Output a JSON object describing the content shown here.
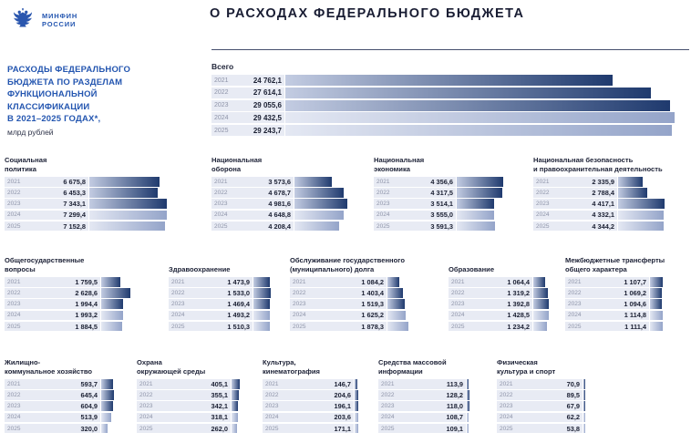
{
  "header": {
    "logo_line1": "МИНФИН",
    "logo_line2": "РОССИИ",
    "title": "О РАСХОДАХ ФЕДЕРАЛЬНОГО БЮДЖЕТА"
  },
  "intro": {
    "heading": "РАСХОДЫ ФЕДЕРАЛЬНОГО\nБЮДЖЕТА ПО РАЗДЕЛАМ\nФУНКЦИОНАЛЬНОЙ\nКЛАССИФИКАЦИИ\nВ 2021–2025 ГОДАХ*,",
    "unit": "млрд рублей"
  },
  "colors": {
    "accent_blue": "#2456b0",
    "title_color": "#191d33",
    "row_box_bg": "#e8ebf4",
    "bar_dark_start": "#c3cce2",
    "bar_dark_end": "#1f3a6e",
    "bar_planned_start": "#e4e8f3",
    "bar_planned_end": "#94a4c9"
  },
  "planned_years": [
    "2024",
    "2025"
  ],
  "chart_data": [
    {
      "id": "total",
      "type": "bar",
      "title": "Всего",
      "categories": [
        "2021",
        "2022",
        "2023",
        "2024",
        "2025"
      ],
      "values": [
        24762.1,
        27614.1,
        29055.6,
        29432.5,
        29243.7
      ],
      "values_display": [
        "24 762,1",
        "27 614,1",
        "29 055,6",
        "29 432,5",
        "29 243,7"
      ]
    },
    {
      "id": "social",
      "type": "bar",
      "title": "Социальная\nполитика",
      "categories": [
        "2021",
        "2022",
        "2023",
        "2024",
        "2025"
      ],
      "values": [
        6675.8,
        6453.3,
        7343.1,
        7299.4,
        7152.8
      ],
      "values_display": [
        "6 675,8",
        "6 453,3",
        "7 343,1",
        "7 299,4",
        "7 152,8"
      ]
    },
    {
      "id": "defense",
      "type": "bar",
      "title": "Национальная\nоборона",
      "categories": [
        "2021",
        "2022",
        "2023",
        "2024",
        "2025"
      ],
      "values": [
        3573.6,
        4678.7,
        4981.6,
        4648.8,
        4208.4
      ],
      "values_display": [
        "3 573,6",
        "4 678,7",
        "4 981,6",
        "4 648,8",
        "4 208,4"
      ]
    },
    {
      "id": "economy",
      "type": "bar",
      "title": "Национальная\nэкономика",
      "categories": [
        "2021",
        "2022",
        "2023",
        "2024",
        "2025"
      ],
      "values": [
        4356.6,
        4317.5,
        3514.1,
        3555.0,
        3591.3
      ],
      "values_display": [
        "4 356,6",
        "4 317,5",
        "3 514,1",
        "3 555,0",
        "3 591,3"
      ]
    },
    {
      "id": "security",
      "type": "bar",
      "title": "Национальная безопасность\nи правоохранительная деятельность",
      "categories": [
        "2021",
        "2022",
        "2023",
        "2024",
        "2025"
      ],
      "values": [
        2335.9,
        2788.4,
        4417.1,
        4332.1,
        4344.2
      ],
      "values_display": [
        "2 335,9",
        "2 788,4",
        "4 417,1",
        "4 332,1",
        "4 344,2"
      ]
    },
    {
      "id": "general-state",
      "type": "bar",
      "title": "Общегосударственные\nвопросы",
      "categories": [
        "2021",
        "2022",
        "2023",
        "2024",
        "2025"
      ],
      "values": [
        1759.5,
        2628.6,
        1994.4,
        1993.2,
        1884.5
      ],
      "values_display": [
        "1 759,5",
        "2 628,6",
        "1 994,4",
        "1 993,2",
        "1 884,5"
      ]
    },
    {
      "id": "healthcare",
      "type": "bar",
      "title": "Здравоохранение",
      "categories": [
        "2021",
        "2022",
        "2023",
        "2024",
        "2025"
      ],
      "values": [
        1473.9,
        1533.0,
        1469.4,
        1493.2,
        1510.3
      ],
      "values_display": [
        "1 473,9",
        "1 533,0",
        "1 469,4",
        "1 493,2",
        "1 510,3"
      ]
    },
    {
      "id": "debt-service",
      "type": "bar",
      "title": "Обслуживание государственного\n(муниципального) долга",
      "categories": [
        "2021",
        "2022",
        "2023",
        "2024",
        "2025"
      ],
      "values": [
        1084.2,
        1403.4,
        1519.3,
        1625.2,
        1878.3
      ],
      "values_display": [
        "1 084,2",
        "1 403,4",
        "1 519,3",
        "1 625,2",
        "1 878,3"
      ]
    },
    {
      "id": "education",
      "type": "bar",
      "title": "Образование",
      "categories": [
        "2021",
        "2022",
        "2023",
        "2024",
        "2025"
      ],
      "values": [
        1064.4,
        1319.2,
        1392.8,
        1428.5,
        1234.2
      ],
      "values_display": [
        "1 064,4",
        "1 319,2",
        "1 392,8",
        "1 428,5",
        "1 234,2"
      ]
    },
    {
      "id": "intergov-transfers",
      "type": "bar",
      "title": "Межбюджетные трансферты\nобщего характера",
      "categories": [
        "2021",
        "2022",
        "2023",
        "2024",
        "2025"
      ],
      "values": [
        1107.7,
        1069.2,
        1094.6,
        1114.8,
        1111.4
      ],
      "values_display": [
        "1 107,7",
        "1 069,2",
        "1 094,6",
        "1 114,8",
        "1 111,4"
      ]
    },
    {
      "id": "housing",
      "type": "bar",
      "title": "Жилищно-\nкоммунальное хозяйство",
      "categories": [
        "2021",
        "2022",
        "2023",
        "2024",
        "2025"
      ],
      "values": [
        593.7,
        645.4,
        604.9,
        513.9,
        320.0
      ],
      "values_display": [
        "593,7",
        "645,4",
        "604,9",
        "513,9",
        "320,0"
      ]
    },
    {
      "id": "environment",
      "type": "bar",
      "title": "Охрана\nокружающей среды",
      "categories": [
        "2021",
        "2022",
        "2023",
        "2024",
        "2025"
      ],
      "values": [
        405.1,
        355.1,
        342.1,
        318.1,
        262.0
      ],
      "values_display": [
        "405,1",
        "355,1",
        "342,1",
        "318,1",
        "262,0"
      ]
    },
    {
      "id": "culture",
      "type": "bar",
      "title": "Культура,\nкинематография",
      "categories": [
        "2021",
        "2022",
        "2023",
        "2024",
        "2025"
      ],
      "values": [
        146.7,
        204.6,
        196.1,
        203.6,
        171.1
      ],
      "values_display": [
        "146,7",
        "204,6",
        "196,1",
        "203,6",
        "171,1"
      ]
    },
    {
      "id": "media",
      "type": "bar",
      "title": "Средства массовой\nинформации",
      "categories": [
        "2021",
        "2022",
        "2023",
        "2024",
        "2025"
      ],
      "values": [
        113.9,
        128.2,
        118.0,
        108.7,
        109.1
      ],
      "values_display": [
        "113,9",
        "128,2",
        "118,0",
        "108,7",
        "109,1"
      ]
    },
    {
      "id": "sport",
      "type": "bar",
      "title": "Физическая\nкультура и спорт",
      "categories": [
        "2021",
        "2022",
        "2023",
        "2024",
        "2025"
      ],
      "values": [
        70.9,
        89.5,
        67.9,
        62.2,
        53.8
      ],
      "values_display": [
        "70,9",
        "89,5",
        "67,9",
        "62,2",
        "53,8"
      ]
    }
  ]
}
